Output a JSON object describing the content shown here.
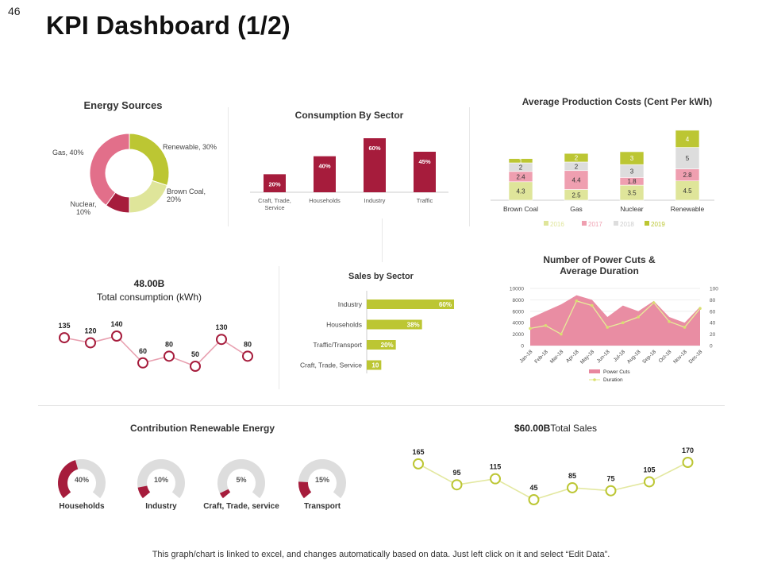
{
  "page": {
    "number": "46",
    "title": "KPI Dashboard (1/2)",
    "footer": "This graph/chart is linked to excel, and changes automatically based on data. Just left click on it and select “Edit Data”."
  },
  "colors": {
    "maroon": "#a61c3c",
    "pink": "#e26f8a",
    "olive": "#bcc633",
    "lightolive": "#dfe59a",
    "gray": "#dddddd",
    "line": "#c8d65e"
  },
  "chart_data": [
    {
      "id": "energy",
      "type": "pie",
      "title": "Energy Sources",
      "categories": [
        "Renewable",
        "Brown Coal",
        "Nuclear",
        "Gas"
      ],
      "values": [
        30,
        20,
        10,
        40
      ],
      "labels": [
        "Renewable,  30%",
        "Brown Coal,\n20%",
        "Nuclear,\n10%",
        "Gas, 40%"
      ]
    },
    {
      "id": "consumption",
      "type": "bar",
      "title": "Consumption By Sector",
      "categories": [
        "Craft, Trade,\nService",
        "Households",
        "Industry",
        "Traffic"
      ],
      "values": [
        20,
        40,
        60,
        45
      ],
      "data_labels": [
        "20%",
        "40%",
        "60%",
        "45%"
      ]
    },
    {
      "id": "production",
      "type": "bar",
      "title": "Average Production Costs (Cent Per kWh)",
      "categories": [
        "Brown Coal",
        "Gas",
        "Nuclear",
        "Renewable"
      ],
      "series": [
        {
          "name": "2016",
          "values": [
            4.3,
            2.5,
            3.5,
            4.5
          ]
        },
        {
          "name": "2017",
          "values": [
            2.4,
            4.4,
            1.8,
            2.8
          ]
        },
        {
          "name": "2018",
          "values": [
            2,
            2,
            3,
            5
          ]
        },
        {
          "name": "2019",
          "values": [
            1,
            2,
            3,
            4
          ]
        }
      ]
    },
    {
      "id": "total_consumption",
      "type": "line",
      "title": "48.00B",
      "subtitle": "Total consumption (kWh)",
      "values": [
        135,
        120,
        140,
        60,
        80,
        50,
        130,
        80
      ]
    },
    {
      "id": "sales_sector",
      "type": "bar",
      "title": "Sales by Sector",
      "categories": [
        "Industry",
        "Households",
        "Traffic/Transport",
        "Craft, Trade, Service"
      ],
      "values": [
        60,
        38,
        20,
        10
      ],
      "data_labels": [
        "60%",
        "38%",
        "20%",
        "10"
      ]
    },
    {
      "id": "power_cuts",
      "type": "area",
      "title": "Number of Power Cuts &\nAverage Duration",
      "x": [
        "Jan-18",
        "Feb-18",
        "Mar-18",
        "Apr-18",
        "May-18",
        "Jun-18",
        "Jul-18",
        "Aug-18",
        "Sep-18",
        "Oct-18",
        "Nov-18",
        "Dec-18"
      ],
      "series": [
        {
          "name": "Power Cuts",
          "values": [
            4800,
            6000,
            7200,
            8800,
            8000,
            5000,
            7000,
            6000,
            7800,
            5000,
            4000,
            6800
          ]
        },
        {
          "name": "Duration",
          "values": [
            30,
            35,
            20,
            78,
            70,
            32,
            40,
            50,
            75,
            42,
            32,
            65
          ]
        }
      ],
      "y1_ticks": [
        "0",
        "2000",
        "4000",
        "6000",
        "8000",
        "10000"
      ],
      "y1lim": [
        0,
        10000
      ],
      "y2_ticks": [
        "0",
        "20",
        "40",
        "60",
        "80",
        "100"
      ],
      "y2lim": [
        0,
        100
      ]
    },
    {
      "id": "contribution",
      "type": "pie",
      "title": "Contribution Renewable Energy",
      "categories": [
        "Households",
        "Industry",
        "Craft, Trade, service",
        "Transport"
      ],
      "values": [
        40,
        10,
        5,
        15
      ],
      "data_labels": [
        "40%",
        "10%",
        "5%",
        "15%"
      ]
    },
    {
      "id": "total_sales",
      "type": "line",
      "title": "$60.00B",
      "subtitle": "Total  Sales",
      "values": [
        165,
        95,
        115,
        45,
        85,
        75,
        105,
        170
      ]
    }
  ]
}
